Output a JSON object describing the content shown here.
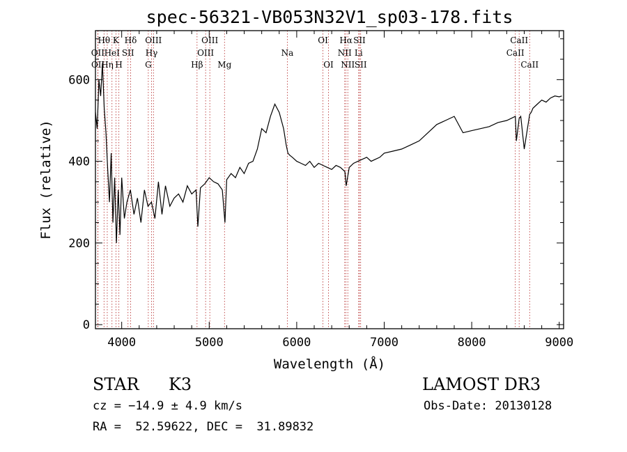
{
  "chart_data": {
    "type": "line",
    "title": "spec-56321-VB053N32V1_sp03-178.fits",
    "xlabel": "Wavelength (Å)",
    "ylabel": "Flux (relative)",
    "xlim": [
      3700,
      9050
    ],
    "ylim": [
      -10,
      720
    ],
    "x_ticks": [
      4000,
      5000,
      6000,
      7000,
      8000,
      9000
    ],
    "y_ticks": [
      0,
      200,
      400,
      600
    ],
    "grid": false,
    "series": [
      {
        "name": "spectrum",
        "x": [
          3700,
          3720,
          3740,
          3760,
          3780,
          3800,
          3820,
          3840,
          3860,
          3880,
          3900,
          3920,
          3940,
          3960,
          3980,
          4000,
          4030,
          4060,
          4100,
          4140,
          4180,
          4220,
          4260,
          4300,
          4340,
          4380,
          4420,
          4460,
          4500,
          4550,
          4600,
          4650,
          4700,
          4750,
          4800,
          4850,
          4870,
          4900,
          4950,
          5000,
          5050,
          5100,
          5150,
          5180,
          5200,
          5250,
          5300,
          5350,
          5400,
          5450,
          5500,
          5550,
          5600,
          5650,
          5700,
          5750,
          5800,
          5850,
          5880,
          5900,
          5920,
          5950,
          6000,
          6050,
          6100,
          6150,
          6200,
          6250,
          6300,
          6350,
          6400,
          6450,
          6500,
          6550,
          6565,
          6600,
          6650,
          6700,
          6750,
          6800,
          6850,
          6900,
          6950,
          7000,
          7100,
          7200,
          7300,
          7400,
          7500,
          7600,
          7700,
          7800,
          7900,
          8000,
          8100,
          8200,
          8300,
          8400,
          8450,
          8498,
          8510,
          8542,
          8560,
          8600,
          8662,
          8680,
          8700,
          8750,
          8800,
          8850,
          8900,
          8950,
          9000,
          9030
        ],
        "y": [
          520,
          480,
          600,
          560,
          640,
          530,
          470,
          380,
          300,
          420,
          250,
          360,
          200,
          330,
          220,
          360,
          260,
          300,
          330,
          270,
          310,
          250,
          330,
          290,
          300,
          260,
          350,
          270,
          340,
          290,
          310,
          320,
          300,
          340,
          320,
          330,
          240,
          335,
          345,
          360,
          350,
          345,
          330,
          250,
          355,
          370,
          360,
          385,
          370,
          395,
          400,
          430,
          480,
          470,
          510,
          540,
          520,
          480,
          440,
          420,
          415,
          410,
          400,
          395,
          390,
          400,
          385,
          395,
          390,
          385,
          380,
          390,
          385,
          375,
          340,
          385,
          395,
          400,
          405,
          410,
          400,
          405,
          410,
          420,
          425,
          430,
          440,
          450,
          470,
          490,
          500,
          510,
          470,
          475,
          480,
          485,
          495,
          500,
          505,
          510,
          450,
          505,
          510,
          430,
          515,
          520,
          530,
          540,
          550,
          545,
          555,
          560,
          558,
          560
        ]
      }
    ],
    "lines": [
      {
        "name": "OII",
        "x": 3727,
        "row": 2
      },
      {
        "name": "OII",
        "x": 3729,
        "row": 3
      },
      {
        "name": "Hθ",
        "x": 3798,
        "row": 1
      },
      {
        "name": "Hη",
        "x": 3835,
        "row": 3
      },
      {
        "name": "HeI",
        "x": 3889,
        "row": 2
      },
      {
        "name": "K",
        "x": 3934,
        "row": 1
      },
      {
        "name": "H",
        "x": 3968,
        "row": 3
      },
      {
        "name": "Hδ",
        "x": 4102,
        "row": 1
      },
      {
        "name": "SII",
        "x": 4072,
        "row": 2
      },
      {
        "name": "OIII",
        "x": 4363,
        "row": 1
      },
      {
        "name": "Hγ",
        "x": 4341,
        "row": 2
      },
      {
        "name": "G",
        "x": 4304,
        "row": 3
      },
      {
        "name": "Hβ",
        "x": 4861,
        "row": 3
      },
      {
        "name": "OIII",
        "x": 5007,
        "row": 1
      },
      {
        "name": "OIII",
        "x": 4959,
        "row": 2
      },
      {
        "name": "Mg",
        "x": 5175,
        "row": 3
      },
      {
        "name": "Na",
        "x": 5893,
        "row": 2
      },
      {
        "name": "OI",
        "x": 6300,
        "row": 1
      },
      {
        "name": "OI",
        "x": 6363,
        "row": 3
      },
      {
        "name": "Hα",
        "x": 6563,
        "row": 1
      },
      {
        "name": "NII",
        "x": 6548,
        "row": 2
      },
      {
        "name": "NII",
        "x": 6584,
        "row": 3
      },
      {
        "name": "SII",
        "x": 6717,
        "row": 1
      },
      {
        "name": "Li",
        "x": 6708,
        "row": 2
      },
      {
        "name": "SII",
        "x": 6731,
        "row": 3
      },
      {
        "name": "CaII",
        "x": 8542,
        "row": 1
      },
      {
        "name": "CaII",
        "x": 8498,
        "row": 2
      },
      {
        "name": "CaII",
        "x": 8662,
        "row": 3
      }
    ]
  },
  "info": {
    "star_label": "STAR",
    "class_label": "K3",
    "survey_label": "LAMOST DR3",
    "cz_text": "cz = −14.9 ± 4.9 km/s",
    "obs_date_text": "Obs-Date: 20130128",
    "coord_text": "RA =  52.59622, DEC =  31.89832"
  },
  "colors": {
    "line_marker": "#b22222",
    "spectrum": "#000000"
  }
}
